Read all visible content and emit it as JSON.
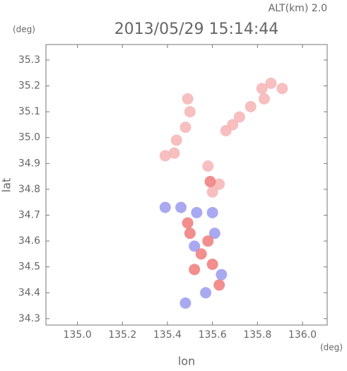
{
  "chart_data": {
    "type": "scatter",
    "header": "ALT(km) 2.0",
    "title": "2013/05/29 15:14:44",
    "y_unit": "(deg)",
    "x_unit": "(deg)",
    "xlabel": "lon",
    "ylabel": "lat",
    "xlim": [
      134.86,
      136.11
    ],
    "ylim": [
      34.275,
      35.36
    ],
    "xticks": [
      {
        "value": 135,
        "label": "135.0"
      },
      135.2,
      135.4,
      135.6,
      135.8,
      {
        "value": 136,
        "label": "136.0"
      }
    ],
    "yticks": [
      34.3,
      34.4,
      34.5,
      34.6,
      34.7,
      34.8,
      34.9,
      {
        "value": 35,
        "label": "35.0"
      },
      35.1,
      35.2,
      35.3
    ],
    "series": [
      {
        "color": "#f6b4b4",
        "x": [
          135.66,
          135.69,
          135.72,
          135.77,
          135.82,
          135.83,
          135.86,
          135.91,
          135.49,
          135.5,
          135.48,
          135.44,
          135.43,
          135.39,
          135.6,
          135.63,
          135.58
        ],
        "values": [
          35.027,
          35.05,
          35.08,
          35.12,
          35.19,
          35.15,
          35.21,
          35.19,
          35.15,
          35.1,
          35.04,
          34.99,
          34.94,
          34.93,
          34.79,
          34.82,
          34.89
        ]
      },
      {
        "color": "#9a9af0",
        "x": [
          135.39,
          135.46,
          135.53,
          135.6,
          135.61,
          135.52,
          135.64,
          135.57,
          135.48
        ],
        "values": [
          34.73,
          34.73,
          34.71,
          34.71,
          34.63,
          34.58,
          34.47,
          34.4,
          34.36
        ]
      },
      {
        "color": "#f07a7a",
        "x": [
          135.49,
          135.5,
          135.58,
          135.55,
          135.6,
          135.52,
          135.63,
          135.59
        ],
        "values": [
          34.67,
          34.63,
          34.6,
          34.55,
          34.51,
          34.49,
          34.43,
          34.83
        ]
      }
    ]
  }
}
